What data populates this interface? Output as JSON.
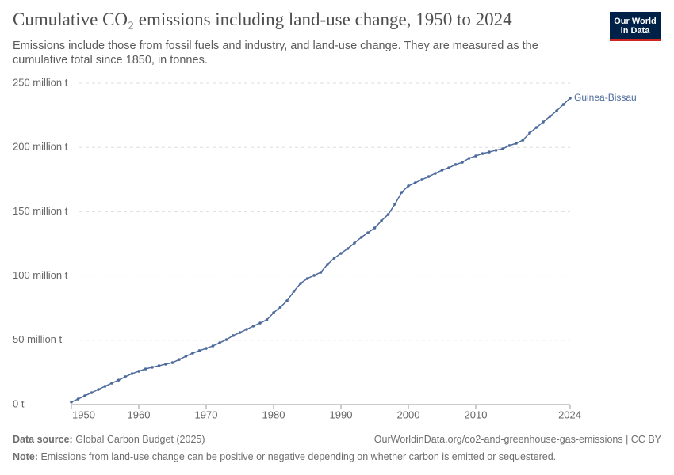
{
  "chart_data": {
    "type": "line",
    "title": "Cumulative CO₂ emissions including land-use change, 1950 to 2024",
    "subtitle": "Emissions include those from fossil fuels and industry, and land-use change. They are measured as the cumulative total since 1850, in tonnes.",
    "logo": [
      "Our World",
      "in Data"
    ],
    "source_label": "Data source:",
    "source": "Global Carbon Budget (2025)",
    "url": "OurWorldinData.org/co2-and-greenhouse-gas-emissions | CC BY",
    "note_label": "Note:",
    "note": "Emissions from land-use change can be positive or negative depending on whether carbon is emitted or sequestered.",
    "x": [
      1950,
      1951,
      1952,
      1953,
      1954,
      1955,
      1956,
      1957,
      1958,
      1959,
      1960,
      1961,
      1962,
      1963,
      1964,
      1965,
      1966,
      1967,
      1968,
      1969,
      1970,
      1971,
      1972,
      1973,
      1974,
      1975,
      1976,
      1977,
      1978,
      1979,
      1980,
      1981,
      1982,
      1983,
      1984,
      1985,
      1986,
      1987,
      1988,
      1989,
      1990,
      1991,
      1992,
      1993,
      1994,
      1995,
      1996,
      1997,
      1998,
      1999,
      2000,
      2001,
      2002,
      2003,
      2004,
      2005,
      2006,
      2007,
      2008,
      2009,
      2010,
      2011,
      2012,
      2013,
      2014,
      2015,
      2016,
      2017,
      2018,
      2019,
      2020,
      2021,
      2022,
      2023,
      2024
    ],
    "series": [
      {
        "name": "Guinea-Bissau",
        "color": "#4c6a9c",
        "values": [
          2000000,
          4300000,
          6800000,
          9200000,
          11700000,
          14200000,
          16600000,
          19000000,
          21600000,
          24000000,
          25900000,
          27700000,
          29000000,
          30200000,
          31400000,
          32600000,
          35000000,
          37600000,
          40000000,
          41900000,
          43700000,
          45600000,
          48000000,
          50500000,
          53600000,
          56000000,
          58500000,
          61000000,
          63400000,
          65900000,
          71400000,
          75700000,
          80700000,
          88000000,
          94200000,
          97900000,
          100400000,
          102800000,
          109000000,
          113900000,
          117600000,
          121300000,
          125600000,
          130000000,
          133600000,
          137300000,
          142900000,
          147800000,
          155800000,
          165000000,
          170000000,
          172400000,
          174900000,
          177300000,
          179800000,
          182300000,
          184100000,
          186600000,
          188400000,
          191500000,
          193300000,
          195200000,
          196400000,
          197700000,
          198900000,
          201400000,
          203200000,
          205700000,
          211200000,
          215500000,
          219800000,
          224100000,
          228400000,
          233400000,
          238300000
        ]
      }
    ],
    "xlim": [
      1950,
      2024
    ],
    "xticks": [
      1950,
      1960,
      1970,
      1980,
      1990,
      2000,
      2010,
      2024
    ],
    "ylim": [
      0,
      250000000
    ],
    "yticks": [
      {
        "value": 0,
        "label": "0 t"
      },
      {
        "value": 50000000,
        "label": "50 million t"
      },
      {
        "value": 100000000,
        "label": "100 million t"
      },
      {
        "value": 150000000,
        "label": "150 million t"
      },
      {
        "value": 200000000,
        "label": "200 million t"
      },
      {
        "value": 250000000,
        "label": "250 million t"
      }
    ],
    "grid": true
  }
}
